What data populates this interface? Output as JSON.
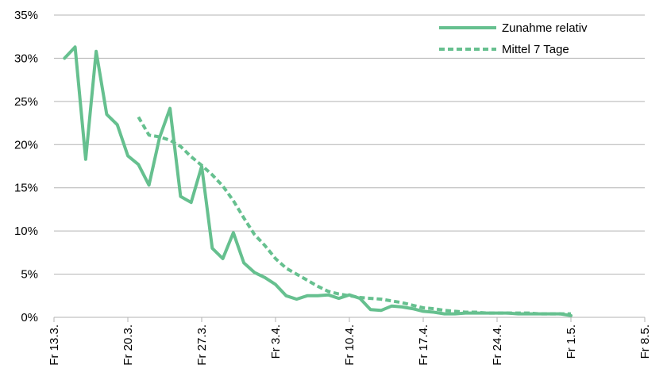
{
  "chart_data": {
    "type": "line",
    "title": "",
    "xlabel": "",
    "ylabel": "",
    "x_ticks": [
      "Fr 13.3.",
      "Fr 20.3.",
      "Fr 27.3.",
      "Fr 3.4.",
      "Fr 10.4.",
      "Fr 17.4.",
      "Fr 24.4.",
      "Fr 1.5.",
      "Fr 8.5."
    ],
    "y_ticks": [
      "0%",
      "5%",
      "10%",
      "15%",
      "20%",
      "25%",
      "30%",
      "35%"
    ],
    "xlim": [
      "2020-03-13",
      "2020-05-08"
    ],
    "ylim": [
      0,
      35
    ],
    "grid": "horizontal",
    "legend": "top-right",
    "series": [
      {
        "name": "Zunahme relativ",
        "style": "solid",
        "color": "#66c08f",
        "points": [
          [
            "2020-03-14",
            30.0
          ],
          [
            "2020-03-15",
            31.3
          ],
          [
            "2020-03-16",
            18.3
          ],
          [
            "2020-03-17",
            30.8
          ],
          [
            "2020-03-18",
            23.5
          ],
          [
            "2020-03-19",
            22.3
          ],
          [
            "2020-03-20",
            18.7
          ],
          [
            "2020-03-21",
            17.7
          ],
          [
            "2020-03-22",
            15.3
          ],
          [
            "2020-03-23",
            20.8
          ],
          [
            "2020-03-24",
            24.2
          ],
          [
            "2020-03-25",
            14.0
          ],
          [
            "2020-03-26",
            13.3
          ],
          [
            "2020-03-27",
            17.5
          ],
          [
            "2020-03-28",
            8.0
          ],
          [
            "2020-03-29",
            6.8
          ],
          [
            "2020-03-30",
            9.8
          ],
          [
            "2020-03-31",
            6.3
          ],
          [
            "2020-04-01",
            5.2
          ],
          [
            "2020-04-02",
            4.6
          ],
          [
            "2020-04-03",
            3.8
          ],
          [
            "2020-04-04",
            2.5
          ],
          [
            "2020-04-05",
            2.1
          ],
          [
            "2020-04-06",
            2.5
          ],
          [
            "2020-04-07",
            2.5
          ],
          [
            "2020-04-08",
            2.6
          ],
          [
            "2020-04-09",
            2.2
          ],
          [
            "2020-04-10",
            2.6
          ],
          [
            "2020-04-11",
            2.2
          ],
          [
            "2020-04-12",
            0.9
          ],
          [
            "2020-04-13",
            0.8
          ],
          [
            "2020-04-14",
            1.3
          ],
          [
            "2020-04-15",
            1.2
          ],
          [
            "2020-04-16",
            1.0
          ],
          [
            "2020-04-17",
            0.7
          ],
          [
            "2020-04-18",
            0.6
          ],
          [
            "2020-04-19",
            0.4
          ],
          [
            "2020-04-20",
            0.4
          ],
          [
            "2020-04-21",
            0.5
          ],
          [
            "2020-04-22",
            0.5
          ],
          [
            "2020-04-23",
            0.5
          ],
          [
            "2020-04-24",
            0.5
          ],
          [
            "2020-04-25",
            0.5
          ],
          [
            "2020-04-26",
            0.4
          ],
          [
            "2020-04-27",
            0.4
          ],
          [
            "2020-04-28",
            0.4
          ],
          [
            "2020-04-29",
            0.4
          ],
          [
            "2020-04-30",
            0.4
          ],
          [
            "2020-05-01",
            0.2
          ]
        ]
      },
      {
        "name": "Mittel 7 Tage",
        "style": "dotted",
        "color": "#66c08f",
        "points": [
          [
            "2020-03-21",
            23.2
          ],
          [
            "2020-03-22",
            21.1
          ],
          [
            "2020-03-23",
            20.9
          ],
          [
            "2020-03-24",
            20.5
          ],
          [
            "2020-03-25",
            19.8
          ],
          [
            "2020-03-26",
            18.6
          ],
          [
            "2020-03-27",
            17.6
          ],
          [
            "2020-03-28",
            16.5
          ],
          [
            "2020-03-29",
            15.2
          ],
          [
            "2020-03-30",
            13.5
          ],
          [
            "2020-03-31",
            11.5
          ],
          [
            "2020-04-01",
            9.6
          ],
          [
            "2020-04-02",
            8.3
          ],
          [
            "2020-04-03",
            6.8
          ],
          [
            "2020-04-04",
            5.7
          ],
          [
            "2020-04-05",
            5.0
          ],
          [
            "2020-04-06",
            4.3
          ],
          [
            "2020-04-07",
            3.6
          ],
          [
            "2020-04-08",
            3.0
          ],
          [
            "2020-04-09",
            2.7
          ],
          [
            "2020-04-10",
            2.5
          ],
          [
            "2020-04-11",
            2.3
          ],
          [
            "2020-04-12",
            2.2
          ],
          [
            "2020-04-13",
            2.1
          ],
          [
            "2020-04-14",
            1.9
          ],
          [
            "2020-04-15",
            1.7
          ],
          [
            "2020-04-16",
            1.4
          ],
          [
            "2020-04-17",
            1.1
          ],
          [
            "2020-04-18",
            1.0
          ],
          [
            "2020-04-19",
            0.8
          ],
          [
            "2020-04-20",
            0.7
          ],
          [
            "2020-04-21",
            0.6
          ],
          [
            "2020-04-22",
            0.6
          ],
          [
            "2020-04-23",
            0.5
          ],
          [
            "2020-04-24",
            0.5
          ],
          [
            "2020-04-25",
            0.5
          ],
          [
            "2020-04-26",
            0.5
          ],
          [
            "2020-04-27",
            0.5
          ],
          [
            "2020-04-28",
            0.4
          ],
          [
            "2020-04-29",
            0.4
          ],
          [
            "2020-04-30",
            0.4
          ],
          [
            "2020-05-01",
            0.4
          ]
        ]
      }
    ]
  }
}
